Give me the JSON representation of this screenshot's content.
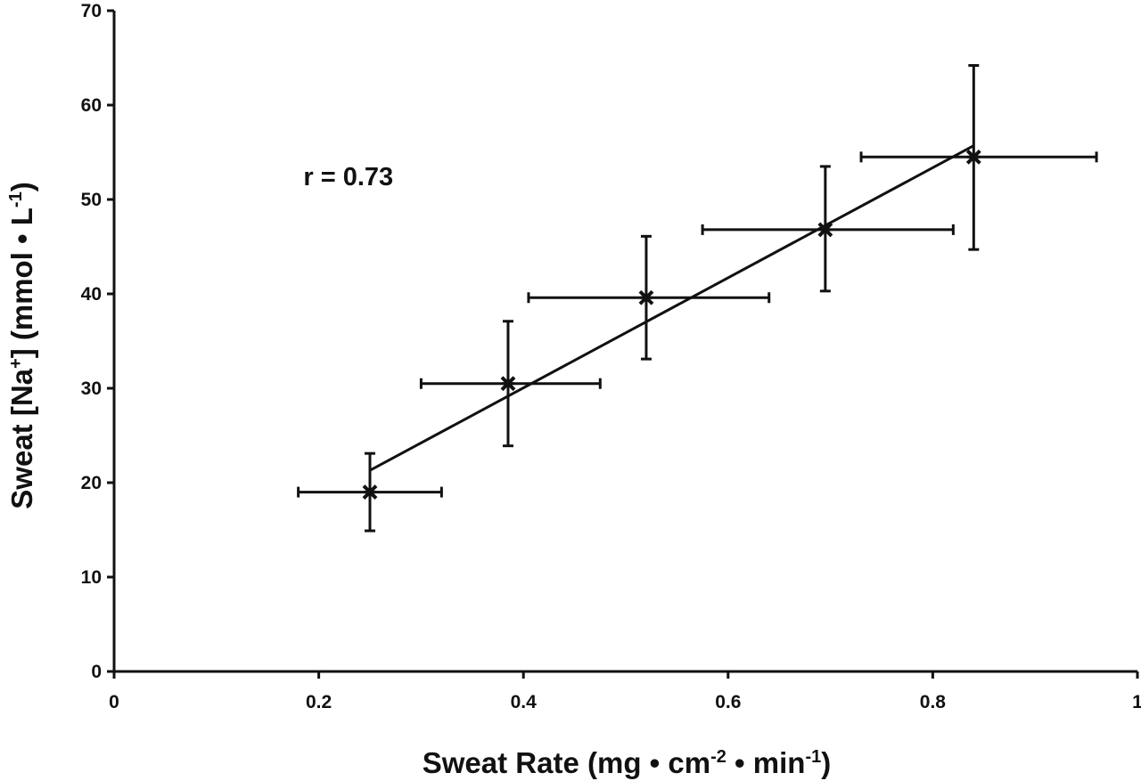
{
  "chart_data": {
    "type": "scatter",
    "title": "",
    "xlabel": {
      "main": "Sweat Rate (mg • cm",
      "sup1": "-2",
      "mid": " • min",
      "sup2": "-1",
      "end": ")"
    },
    "ylabel": {
      "main": "Sweat [Na",
      "sup1": "+",
      "mid": "] (mmol • L",
      "sup2": "-1",
      "end": ")"
    },
    "xlim": [
      0,
      1
    ],
    "ylim": [
      0,
      70
    ],
    "xticks": [
      0,
      0.2,
      0.4,
      0.6,
      0.8,
      1
    ],
    "xtick_labels": [
      "0",
      "0.2",
      "0.4",
      "0.6",
      "0.8",
      "1"
    ],
    "yticks": [
      0,
      10,
      20,
      30,
      40,
      50,
      60,
      70
    ],
    "ytick_labels": [
      "0",
      "10",
      "20",
      "30",
      "40",
      "50",
      "60",
      "70"
    ],
    "grid": false,
    "marker": "x-star",
    "points": [
      {
        "x": 0.25,
        "y": 19.0,
        "xerr": [
          0.18,
          0.32
        ],
        "yerr": [
          14.9,
          23.1
        ]
      },
      {
        "x": 0.385,
        "y": 30.5,
        "xerr": [
          0.3,
          0.475
        ],
        "yerr": [
          23.9,
          37.1
        ]
      },
      {
        "x": 0.52,
        "y": 39.6,
        "xerr": [
          0.405,
          0.64
        ],
        "yerr": [
          33.1,
          46.1
        ]
      },
      {
        "x": 0.695,
        "y": 46.8,
        "xerr": [
          0.575,
          0.82
        ],
        "yerr": [
          40.3,
          53.5
        ]
      },
      {
        "x": 0.84,
        "y": 54.5,
        "xerr": [
          0.73,
          0.96
        ],
        "yerr": [
          44.7,
          64.2
        ]
      }
    ],
    "regression": {
      "x1": 0.25,
      "y1": 21.3,
      "x2": 0.84,
      "y2": 55.7
    },
    "annotations": [
      {
        "text": "r = 0.73",
        "x": 0.185,
        "y": 51.5
      }
    ],
    "colors": {
      "ink": "#111111",
      "background": "#ffffff"
    }
  }
}
